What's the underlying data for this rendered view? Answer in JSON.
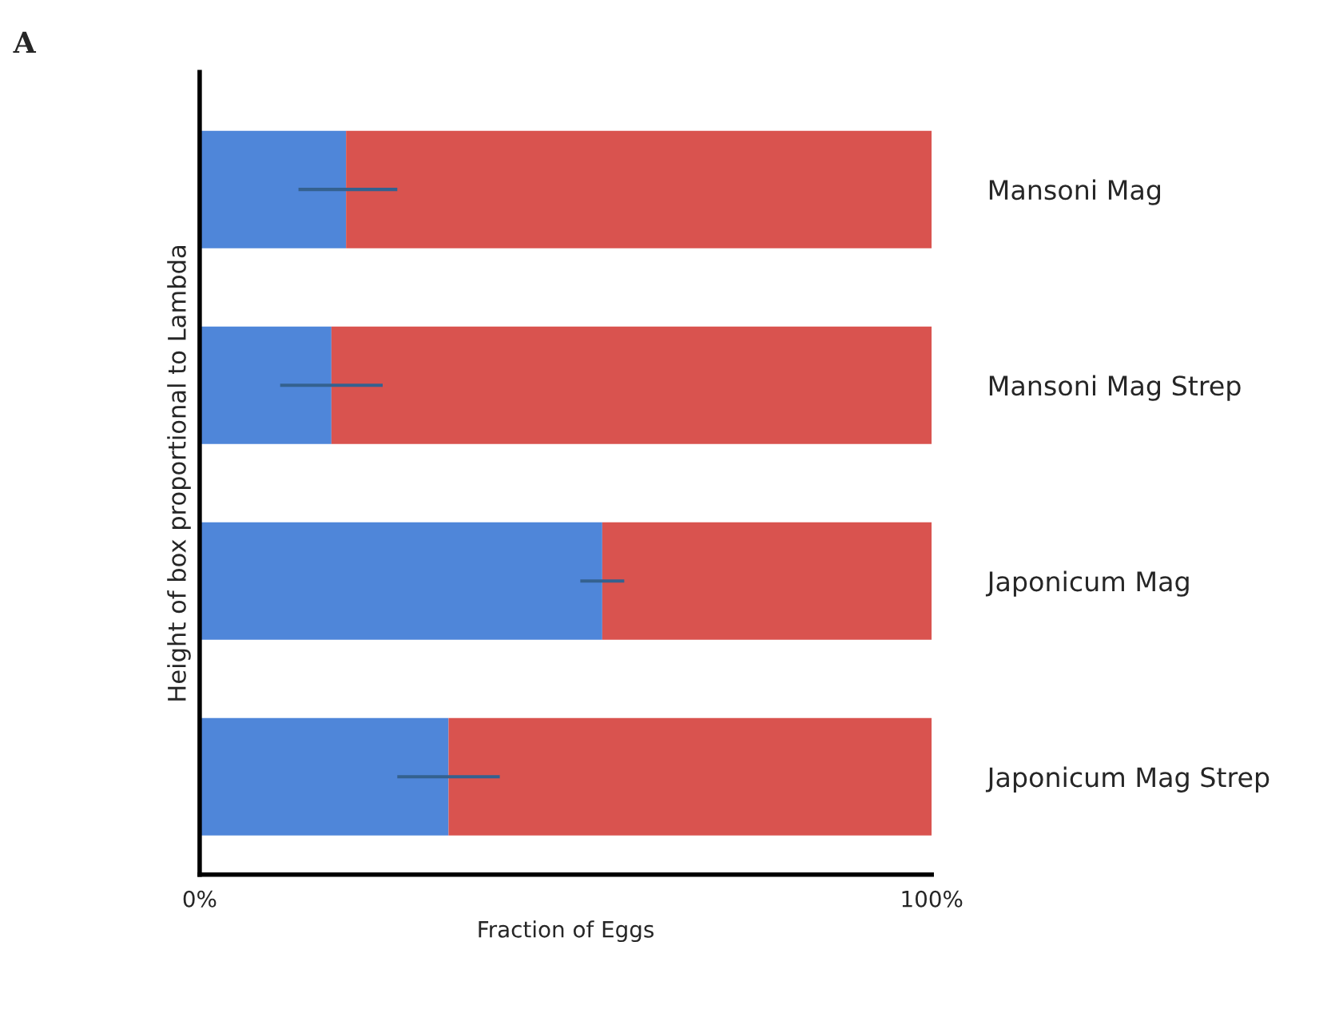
{
  "chart_data": {
    "type": "bar",
    "orientation": "horizontal",
    "stacked": true,
    "categories": [
      "Mansoni Mag",
      "Mansoni Mag Strep",
      "Japonicum Mag",
      "Japonicum Mag Strep"
    ],
    "series": [
      {
        "color": "#4f86d9",
        "values": [
          20,
          18,
          55,
          34
        ],
        "errors": [
          [
            13.5,
            27
          ],
          [
            11,
            25
          ],
          [
            52,
            58
          ],
          [
            27,
            41
          ]
        ]
      },
      {
        "color": "#d9534f",
        "values": [
          80,
          82,
          45,
          66
        ]
      }
    ],
    "xlim": [
      0,
      100
    ],
    "xticks": [
      {
        "value": 0,
        "label": "0%"
      },
      {
        "value": 100,
        "label": "100%"
      }
    ],
    "xlabel": "Fraction of Eggs",
    "ylabel": "Height of box proportional to Lambda",
    "annotations": [
      "A"
    ],
    "grid": false,
    "legend": false
  }
}
